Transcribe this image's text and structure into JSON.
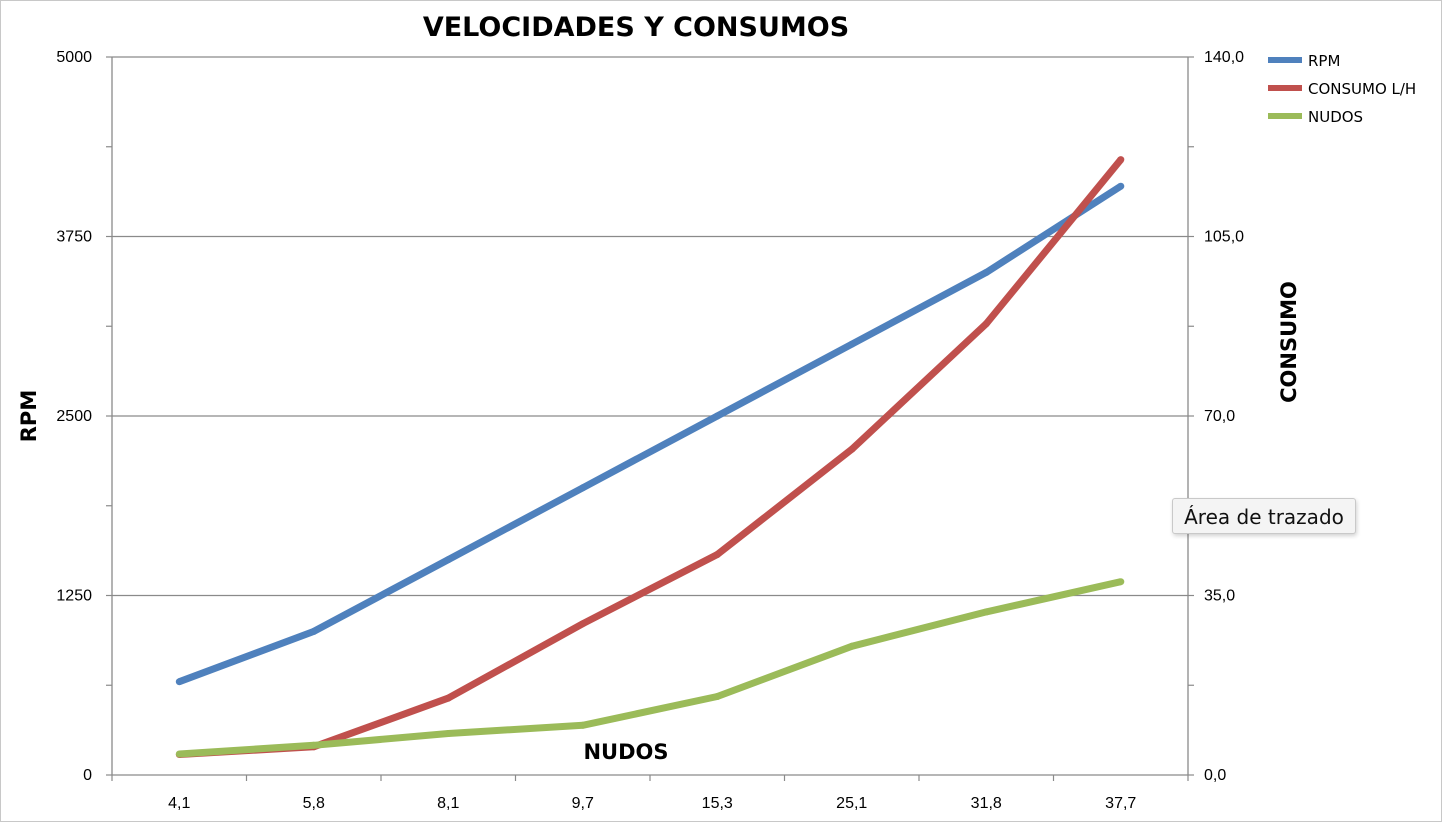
{
  "chart_data": {
    "type": "line",
    "title": "VELOCIDADES Y CONSUMOS",
    "xlabel": "NUDOS",
    "ylabel": "RPM",
    "y2label": "CONSUMO",
    "categories": [
      "4,1",
      "5,8",
      "8,1",
      "9,7",
      "15,3",
      "25,1",
      "31,8",
      "37,7"
    ],
    "ylim": [
      0,
      5000
    ],
    "y2lim": [
      0,
      140
    ],
    "yticks": [
      "0",
      "1250",
      "2500",
      "3750",
      "5000"
    ],
    "y2ticks": [
      "0,0",
      "35,0",
      "70,0",
      "105,0",
      "140,0"
    ],
    "grid": true,
    "legend_position": "top-right",
    "series": [
      {
        "name": "RPM",
        "axis": "left",
        "color": "#4F81BD",
        "values": [
          650,
          1000,
          1500,
          2000,
          2500,
          3000,
          3500,
          4100
        ]
      },
      {
        "name": "CONSUMO L/H",
        "axis": "right",
        "color": "#C0504D",
        "values": [
          4,
          5.5,
          15,
          29.5,
          43,
          63.5,
          88,
          120
        ]
      },
      {
        "name": "NUDOS",
        "axis": "right",
        "color": "#9BBB59",
        "values": [
          4.1,
          5.8,
          8.1,
          9.7,
          15.3,
          25.1,
          31.8,
          37.7
        ]
      }
    ]
  },
  "tooltip": {
    "text": "Área de trazado"
  }
}
